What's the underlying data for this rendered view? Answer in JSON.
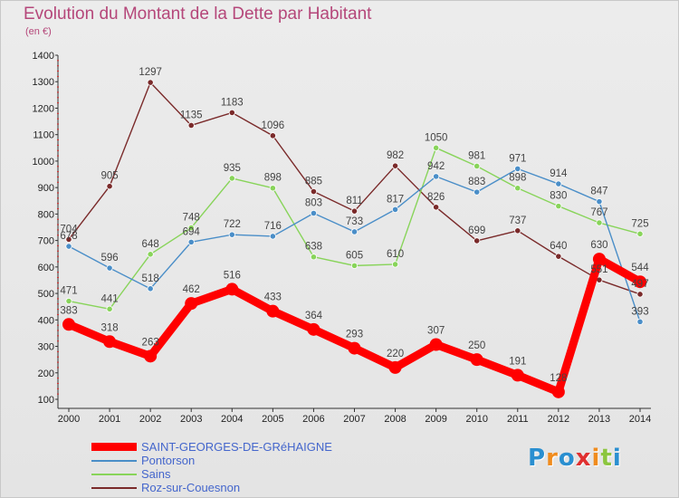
{
  "title": "Evolution du Montant de la Dette par Habitant",
  "subtitle": "(en €)",
  "logo": {
    "text": "Proxiti",
    "colors": [
      "#2a8fd0",
      "#f08c1e",
      "#2a8fd0",
      "#e03030",
      "#f08c1e",
      "#8cc63f",
      "#2a8fd0"
    ]
  },
  "chart_data": {
    "type": "line",
    "title": "Evolution du Montant de la Dette par Habitant",
    "ylabel": "(en €)",
    "xlabel": "",
    "x": [
      "2000",
      "2001",
      "2002",
      "2003",
      "2004",
      "2005",
      "2006",
      "2007",
      "2008",
      "2009",
      "2010",
      "2011",
      "2012",
      "2013",
      "2014"
    ],
    "ylim": [
      100,
      1400
    ],
    "yticks": [
      100,
      200,
      300,
      400,
      500,
      600,
      700,
      800,
      900,
      1000,
      1100,
      1200,
      1300,
      1400
    ],
    "grid": false,
    "legend": "bottom-left",
    "series": [
      {
        "name": "SAINT-GEORGES-DE-GRéHAIGNE",
        "color": "#ff0000",
        "values": [
          383,
          318,
          263,
          462,
          516,
          433,
          364,
          293,
          220,
          307,
          250,
          191,
          128,
          630,
          544
        ]
      },
      {
        "name": "Pontorson",
        "color": "#4a8ec8",
        "values": [
          678,
          596,
          518,
          694,
          722,
          716,
          803,
          733,
          817,
          942,
          883,
          971,
          914,
          847,
          393
        ]
      },
      {
        "name": "Sains",
        "color": "#88d45a",
        "values": [
          471,
          441,
          648,
          748,
          935,
          898,
          638,
          605,
          610,
          1050,
          981,
          898,
          830,
          767,
          725
        ]
      },
      {
        "name": "Roz-sur-Couesnon",
        "color": "#7a2a2a",
        "values": [
          704,
          905,
          1297,
          1135,
          1183,
          1096,
          885,
          811,
          982,
          826,
          699,
          737,
          640,
          551,
          497
        ]
      }
    ]
  }
}
